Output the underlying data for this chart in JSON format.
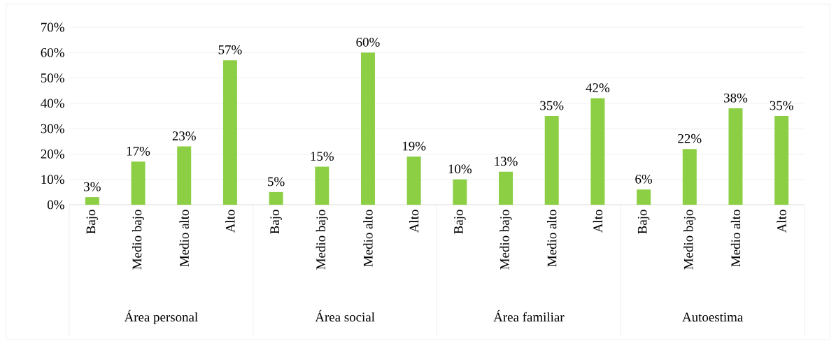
{
  "chart_data": {
    "type": "bar",
    "categories": [
      "Bajo",
      "Medio bajo",
      "Medio alto",
      "Alto",
      "Bajo",
      "Medio bajo",
      "Medio alto",
      "Alto",
      "Bajo",
      "Medio bajo",
      "Medio alto",
      "Alto",
      "Bajo",
      "Medio bajo",
      "Medio alto",
      "Alto"
    ],
    "values": [
      3,
      17,
      23,
      57,
      5,
      15,
      60,
      19,
      10,
      13,
      35,
      42,
      6,
      22,
      38,
      35
    ],
    "value_labels": [
      "3%",
      "17%",
      "23%",
      "57%",
      "5%",
      "15%",
      "60%",
      "19%",
      "10%",
      "13%",
      "35%",
      "42%",
      "6%",
      "22%",
      "38%",
      "35%"
    ],
    "color": "#8ccf45",
    "ylim": [
      0,
      70
    ],
    "yticks": [
      {
        "value": 0,
        "label": "0%"
      },
      {
        "value": 10,
        "label": "10%"
      },
      {
        "value": 20,
        "label": "20%"
      },
      {
        "value": 30,
        "label": "30%"
      },
      {
        "value": 40,
        "label": "40%"
      },
      {
        "value": 50,
        "label": "50%"
      },
      {
        "value": 60,
        "label": "60%"
      },
      {
        "value": 70,
        "label": "70%"
      }
    ],
    "grid": "y",
    "annotations": [
      "Área personal",
      "Área social",
      "Área familiar",
      "Autoestima"
    ]
  }
}
